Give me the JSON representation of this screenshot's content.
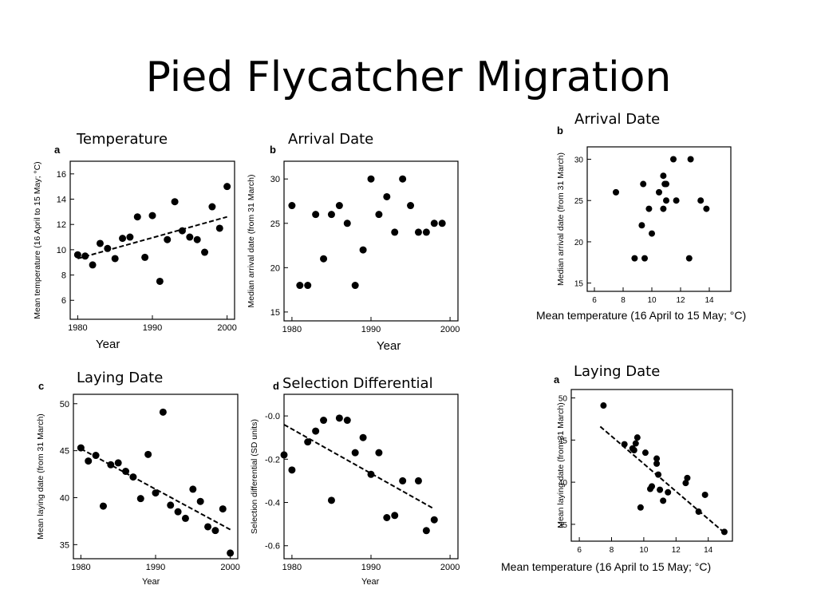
{
  "slide": {
    "title": "Pied Flycatcher Migration",
    "captions": {
      "temperature": "Temperature",
      "arrival_left": "Arrival Date",
      "laying_left": "Laying Date",
      "selection": "Selection Differential",
      "arrival_right": "Arrival Date",
      "laying_right": "Laying Date"
    }
  },
  "chart_data": [
    {
      "id": "temp",
      "panel_label": "a",
      "type": "scatter",
      "xlabel": "Year",
      "ylabel": "Mean temperature (16 April to 15 May; °C)",
      "xlim": [
        1979,
        2001
      ],
      "ylim": [
        4.5,
        17.0
      ],
      "xticks": [
        1980,
        1990,
        2000
      ],
      "yticks": [
        6,
        8,
        10,
        12,
        14,
        16
      ],
      "points": {
        "x": [
          1980,
          1981,
          1982,
          1983,
          1984,
          1985,
          1986,
          1987,
          1988,
          1989,
          1990,
          1991,
          1992,
          1993,
          1994,
          1995,
          1996,
          1997,
          1998,
          1999,
          2000
        ],
        "y": [
          9.6,
          9.5,
          8.8,
          10.5,
          10.1,
          9.3,
          10.9,
          11.0,
          12.6,
          9.4,
          12.7,
          7.5,
          10.8,
          13.8,
          11.5,
          11.0,
          10.8,
          9.8,
          13.4,
          11.7,
          15.0
        ]
      },
      "trend": {
        "x": [
          1980,
          2000
        ],
        "y": [
          9.3,
          12.6
        ]
      }
    },
    {
      "id": "arrival_year",
      "panel_label": "b",
      "type": "scatter",
      "xlabel": "Year",
      "ylabel": "Median arrival date (from 31 March)",
      "xlim": [
        1979,
        2001
      ],
      "ylim": [
        14,
        32
      ],
      "xticks": [
        1980,
        1990,
        2000
      ],
      "yticks": [
        15,
        20,
        25,
        30
      ],
      "points": {
        "x": [
          1980,
          1981,
          1982,
          1983,
          1984,
          1985,
          1986,
          1987,
          1988,
          1989,
          1990,
          1991,
          1992,
          1993,
          1994,
          1995,
          1996,
          1997,
          1998,
          1999
        ],
        "y": [
          27,
          18,
          18,
          26,
          21,
          26,
          27,
          25,
          18,
          22,
          30,
          26,
          28,
          24,
          30,
          27,
          24,
          24,
          25,
          25
        ]
      }
    },
    {
      "id": "laying_year",
      "panel_label": "c",
      "type": "scatter",
      "xlabel": "Year",
      "ylabel": "Mean laying date (from 31 March)",
      "xlim": [
        1979,
        2001
      ],
      "ylim": [
        33.5,
        51
      ],
      "xticks": [
        1980,
        1990,
        2000
      ],
      "yticks": [
        35,
        40,
        45,
        50
      ],
      "points": {
        "x": [
          1980,
          1981,
          1982,
          1983,
          1984,
          1985,
          1986,
          1987,
          1988,
          1989,
          1990,
          1991,
          1992,
          1993,
          1994,
          1995,
          1996,
          1997,
          1998,
          1999,
          2000
        ],
        "y": [
          45.3,
          43.9,
          44.5,
          39.1,
          43.5,
          43.7,
          42.8,
          42.2,
          39.9,
          44.6,
          40.5,
          49.1,
          39.2,
          38.5,
          37.8,
          40.9,
          39.6,
          36.9,
          36.5,
          38.8,
          34.1
        ]
      },
      "trend": {
        "x": [
          1980,
          2000
        ],
        "y": [
          45.2,
          36.6
        ]
      }
    },
    {
      "id": "selection",
      "panel_label": "d",
      "type": "scatter",
      "xlabel": "Year",
      "ylabel": "Selection differential (SD units)",
      "xlim": [
        1979,
        2001
      ],
      "ylim": [
        -0.66,
        0.1
      ],
      "xticks": [
        1980,
        1990,
        2000
      ],
      "yticks": [
        0.0,
        -0.2,
        -0.4,
        -0.6
      ],
      "ytick_labels": [
        "-0.0",
        "-0.2",
        "-0.4",
        "-0.6"
      ],
      "points": {
        "x": [
          1979,
          1980,
          1982,
          1983,
          1984,
          1985,
          1986,
          1987,
          1988,
          1989,
          1990,
          1991,
          1992,
          1993,
          1994,
          1996,
          1997,
          1998
        ],
        "y": [
          -0.18,
          -0.25,
          -0.12,
          -0.07,
          -0.02,
          -0.39,
          -0.01,
          -0.02,
          -0.17,
          -0.1,
          -0.27,
          -0.17,
          -0.47,
          -0.46,
          -0.3,
          -0.3,
          -0.53,
          -0.48
        ]
      },
      "trend": {
        "x": [
          1979,
          1998
        ],
        "y": [
          -0.04,
          -0.43
        ]
      }
    },
    {
      "id": "arrival_temp",
      "panel_label": "b",
      "type": "scatter",
      "xlabel": "Mean temperature (16 April to 15 May; °C)",
      "ylabel": "Median arrival date (from 31 March)",
      "xlim": [
        5.5,
        15.5
      ],
      "ylim": [
        14,
        31.5
      ],
      "xticks": [
        6,
        8,
        10,
        12,
        14
      ],
      "yticks": [
        15,
        20,
        25,
        30
      ],
      "points": {
        "x": [
          7.5,
          8.8,
          9.3,
          9.5,
          9.4,
          9.8,
          10.0,
          10.5,
          10.8,
          10.8,
          10.9,
          11.0,
          11.0,
          11.5,
          11.7,
          12.6,
          12.7,
          13.4,
          13.8
        ],
        "y": [
          26,
          18,
          22,
          18,
          27,
          24,
          21,
          26,
          28,
          24,
          27,
          25,
          27,
          30,
          25,
          18,
          30,
          25,
          24
        ]
      }
    },
    {
      "id": "laying_temp",
      "panel_label": "a",
      "type": "scatter",
      "xlabel": "Mean temperature (16 April to 15 May; °C)",
      "ylabel": "Mean laying date (from 31 March)",
      "xlim": [
        5.5,
        15.5
      ],
      "ylim": [
        33,
        51
      ],
      "xticks": [
        6,
        8,
        10,
        12,
        14
      ],
      "yticks": [
        35,
        40,
        45,
        50
      ],
      "points": {
        "x": [
          7.5,
          8.8,
          9.3,
          9.4,
          9.5,
          9.6,
          9.8,
          10.1,
          10.4,
          10.5,
          10.8,
          10.8,
          10.9,
          11.0,
          11.2,
          11.5,
          12.6,
          12.7,
          13.4,
          13.8,
          15.0
        ],
        "y": [
          49.1,
          44.5,
          44.0,
          43.8,
          44.6,
          45.3,
          37.0,
          43.5,
          39.2,
          39.5,
          42.8,
          42.2,
          40.9,
          39.1,
          37.8,
          38.8,
          39.9,
          40.5,
          36.5,
          38.5,
          34.1
        ]
      },
      "trend": {
        "x": [
          7.3,
          15.0
        ],
        "y": [
          46.6,
          34.0
        ]
      }
    }
  ]
}
